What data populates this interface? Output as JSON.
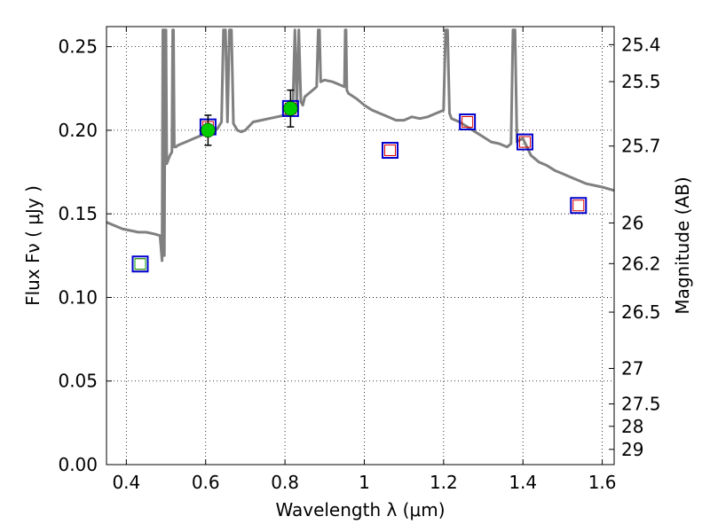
{
  "chart_data": {
    "type": "scatter",
    "title": "",
    "xlabel": "Wavelength  λ (μm)",
    "ylabel": "Flux  Fν  ( μJy )",
    "y2label": "Magnitude (AB)",
    "xlim": [
      0.35,
      1.63
    ],
    "ylim": [
      0.0,
      0.262
    ],
    "grid": true,
    "x_ticks": [
      "0.4",
      "0.6",
      "0.8",
      "1",
      "1.2",
      "1.4",
      "1.6"
    ],
    "y_ticks": [
      "0.00",
      "0.05",
      "0.10",
      "0.15",
      "0.20",
      "0.25"
    ],
    "mag_ticks": [
      {
        "label": "25.4",
        "mag": 25.4
      },
      {
        "label": "25.5",
        "mag": 25.5
      },
      {
        "label": "25.7",
        "mag": 25.7
      },
      {
        "label": "26",
        "mag": 26.0
      },
      {
        "label": "26.2",
        "mag": 26.2
      },
      {
        "label": "26.5",
        "mag": 26.5
      },
      {
        "label": "27",
        "mag": 27.0
      },
      {
        "label": "27.5",
        "mag": 27.5
      },
      {
        "label": "28",
        "mag": 28.0
      },
      {
        "label": "29",
        "mag": 29.0
      }
    ],
    "colors": {
      "model": "#808080",
      "observed": "#00cc00",
      "model_box": "#0000cc",
      "model_photometry": "#dd0000",
      "upper_marker": "#00aa00"
    },
    "series": [
      {
        "kind": "model_spectrum",
        "x": [
          0.35,
          0.37,
          0.39,
          0.41,
          0.43,
          0.45,
          0.47,
          0.485,
          0.49,
          0.492,
          0.494,
          0.496,
          0.498,
          0.5,
          0.502,
          0.505,
          0.51,
          0.515,
          0.517,
          0.519,
          0.521,
          0.525,
          0.53,
          0.54,
          0.55,
          0.56,
          0.57,
          0.58,
          0.59,
          0.6,
          0.61,
          0.62,
          0.63,
          0.64,
          0.645,
          0.65,
          0.655,
          0.66,
          0.665,
          0.67,
          0.68,
          0.69,
          0.7,
          0.72,
          0.74,
          0.76,
          0.78,
          0.8,
          0.82,
          0.825,
          0.83,
          0.835,
          0.84,
          0.845,
          0.85,
          0.86,
          0.87,
          0.88,
          0.884,
          0.887,
          0.89,
          0.9,
          0.92,
          0.94,
          0.95,
          0.952,
          0.954,
          0.956,
          0.96,
          0.98,
          1.0,
          1.02,
          1.04,
          1.06,
          1.08,
          1.1,
          1.12,
          1.14,
          1.16,
          1.18,
          1.2,
          1.205,
          1.21,
          1.215,
          1.22,
          1.24,
          1.26,
          1.28,
          1.3,
          1.32,
          1.34,
          1.36,
          1.37,
          1.375,
          1.38,
          1.385,
          1.39,
          1.4,
          1.42,
          1.44,
          1.46,
          1.48,
          1.5,
          1.52,
          1.54,
          1.56,
          1.58,
          1.6,
          1.63
        ],
        "y": [
          0.145,
          0.143,
          0.141,
          0.14,
          0.139,
          0.139,
          0.138,
          0.137,
          0.122,
          0.26,
          0.26,
          0.125,
          0.26,
          0.26,
          0.18,
          0.182,
          0.185,
          0.187,
          0.26,
          0.26,
          0.19,
          0.19,
          0.191,
          0.192,
          0.193,
          0.194,
          0.195,
          0.196,
          0.197,
          0.198,
          0.199,
          0.2,
          0.201,
          0.205,
          0.26,
          0.26,
          0.205,
          0.26,
          0.26,
          0.204,
          0.2,
          0.199,
          0.2,
          0.205,
          0.206,
          0.207,
          0.208,
          0.209,
          0.215,
          0.26,
          0.214,
          0.26,
          0.217,
          0.215,
          0.22,
          0.222,
          0.224,
          0.226,
          0.26,
          0.26,
          0.229,
          0.23,
          0.229,
          0.227,
          0.226,
          0.26,
          0.26,
          0.224,
          0.222,
          0.219,
          0.215,
          0.212,
          0.21,
          0.208,
          0.206,
          0.206,
          0.208,
          0.207,
          0.208,
          0.21,
          0.212,
          0.26,
          0.26,
          0.21,
          0.207,
          0.205,
          0.202,
          0.199,
          0.196,
          0.193,
          0.192,
          0.19,
          0.192,
          0.26,
          0.26,
          0.193,
          0.194,
          0.195,
          0.185,
          0.181,
          0.179,
          0.176,
          0.174,
          0.172,
          0.17,
          0.168,
          0.167,
          0.166,
          0.164
        ]
      },
      {
        "kind": "observed_points",
        "x": [
          0.606,
          0.814
        ],
        "y": [
          0.2,
          0.213
        ],
        "yerr": [
          0.009,
          0.011
        ]
      },
      {
        "kind": "model_photometry",
        "x": [
          0.435,
          0.606,
          0.814,
          1.065,
          1.26,
          1.405,
          1.54
        ],
        "y": [
          0.12,
          0.202,
          0.213,
          0.188,
          0.205,
          0.193,
          0.155
        ]
      },
      {
        "kind": "undetected_marker",
        "x": [
          0.435
        ],
        "y": [
          0.12
        ]
      }
    ]
  }
}
